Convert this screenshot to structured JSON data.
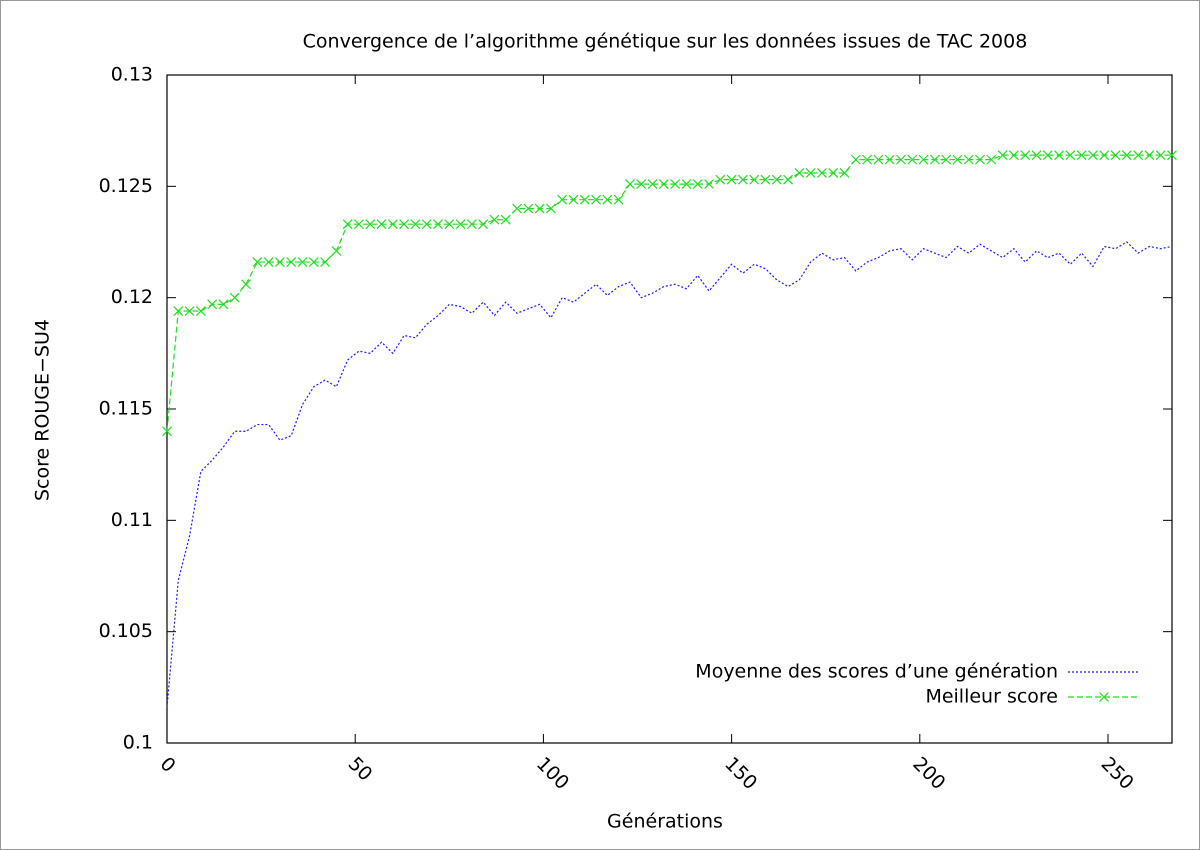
{
  "chart_data": {
    "type": "line",
    "title": "Convergence de l’algorithme génétique sur les données issues de TAC 2008",
    "xlabel": "Générations",
    "ylabel": "Score ROUGE−SU4",
    "x": [
      0,
      3,
      6,
      9,
      12,
      15,
      18,
      21,
      24,
      27,
      30,
      33,
      36,
      39,
      42,
      45,
      48,
      51,
      54,
      57,
      60,
      63,
      66,
      69,
      72,
      75,
      78,
      81,
      84,
      87,
      90,
      93,
      96,
      99,
      102,
      105,
      108,
      111,
      114,
      117,
      120,
      123,
      126,
      129,
      132,
      135,
      138,
      141,
      144,
      147,
      150,
      153,
      156,
      159,
      162,
      165,
      168,
      171,
      174,
      177,
      180,
      183,
      186,
      189,
      192,
      195,
      198,
      201,
      204,
      207,
      210,
      213,
      216,
      219,
      222,
      225,
      228,
      231,
      234,
      237,
      240,
      243,
      246,
      249,
      252,
      255,
      258,
      261,
      264,
      267
    ],
    "series": [
      {
        "name": "Moyenne des scores d’une génération",
        "color": "#1a1aff",
        "dash": "2,2",
        "marker": false,
        "values": [
          0.1016,
          0.1073,
          0.1093,
          0.1122,
          0.1127,
          0.1133,
          0.114,
          0.114,
          0.1143,
          0.1143,
          0.1136,
          0.1138,
          0.1152,
          0.116,
          0.1163,
          0.116,
          0.1172,
          0.1176,
          0.1175,
          0.118,
          0.1175,
          0.1183,
          0.1182,
          0.1188,
          0.1192,
          0.1197,
          0.1196,
          0.1193,
          0.1198,
          0.1192,
          0.1198,
          0.1193,
          0.1195,
          0.1197,
          0.1191,
          0.12,
          0.1198,
          0.1202,
          0.1206,
          0.1201,
          0.1205,
          0.1207,
          0.12,
          0.1202,
          0.1205,
          0.1206,
          0.1204,
          0.121,
          0.1203,
          0.1209,
          0.1215,
          0.1211,
          0.1215,
          0.1213,
          0.1208,
          0.1205,
          0.1208,
          0.1216,
          0.122,
          0.1217,
          0.1218,
          0.1212,
          0.1216,
          0.1218,
          0.1221,
          0.1222,
          0.1217,
          0.1222,
          0.122,
          0.1218,
          0.1223,
          0.122,
          0.1224,
          0.1221,
          0.1218,
          0.1222,
          0.1216,
          0.1221,
          0.1218,
          0.122,
          0.1215,
          0.122,
          0.1214,
          0.1223,
          0.1222,
          0.1225,
          0.122,
          0.1223,
          0.1222,
          0.1223
        ]
      },
      {
        "name": "Meilleur score",
        "color": "#22dd22",
        "dash": "6,3",
        "marker": true,
        "values": [
          0.114,
          0.1194,
          0.1194,
          0.1194,
          0.1197,
          0.1197,
          0.12,
          0.1206,
          0.1216,
          0.1216,
          0.1216,
          0.1216,
          0.1216,
          0.1216,
          0.1216,
          0.1221,
          0.1233,
          0.1233,
          0.1233,
          0.1233,
          0.1233,
          0.1233,
          0.1233,
          0.1233,
          0.1233,
          0.1233,
          0.1233,
          0.1233,
          0.1233,
          0.1235,
          0.1235,
          0.124,
          0.124,
          0.124,
          0.124,
          0.1244,
          0.1244,
          0.1244,
          0.1244,
          0.1244,
          0.1244,
          0.1251,
          0.1251,
          0.1251,
          0.1251,
          0.1251,
          0.1251,
          0.1251,
          0.1251,
          0.1253,
          0.1253,
          0.1253,
          0.1253,
          0.1253,
          0.1253,
          0.1253,
          0.1256,
          0.1256,
          0.1256,
          0.1256,
          0.1256,
          0.1262,
          0.1262,
          0.1262,
          0.1262,
          0.1262,
          0.1262,
          0.1262,
          0.1262,
          0.1262,
          0.1262,
          0.1262,
          0.1262,
          0.1262,
          0.1264,
          0.1264,
          0.1264,
          0.1264,
          0.1264,
          0.1264,
          0.1264,
          0.1264,
          0.1264,
          0.1264,
          0.1264,
          0.1264,
          0.1264,
          0.1264,
          0.1264,
          0.1264
        ]
      }
    ],
    "xlim": [
      0,
      267
    ],
    "ylim": [
      0.1,
      0.13
    ],
    "xticks": [
      0,
      50,
      100,
      150,
      200,
      250
    ],
    "yticks": [
      0.1,
      0.105,
      0.11,
      0.115,
      0.12,
      0.125,
      0.13
    ],
    "legend": "bottom-right",
    "grid": false
  }
}
